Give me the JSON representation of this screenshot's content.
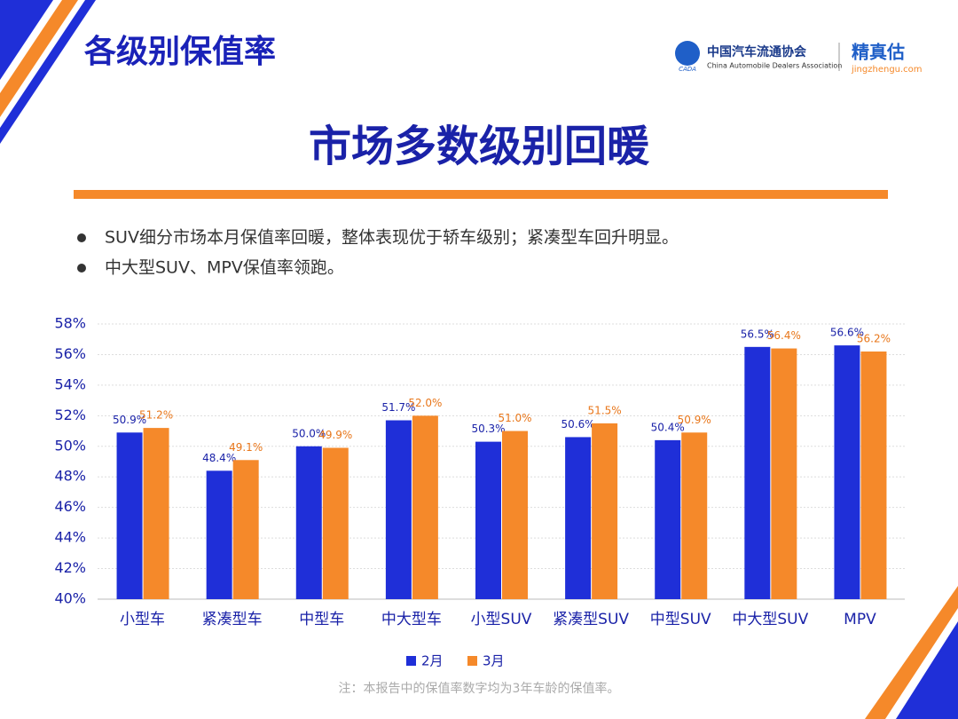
{
  "header": {
    "title": "各级别保值率",
    "logo_cn": "中国汽车流通协会",
    "logo_en": "China Automobile Dealers Association",
    "logo_short": "CADA",
    "brand": "精真估",
    "brand_url": "jingzhengu.com"
  },
  "headline": "市场多数级别回暖",
  "bullets": [
    "SUV细分市场本月保值率回暖，整体表现优于轿车级别；紧凑型车回升明显。",
    "中大型SUV、MPV保值率领跑。"
  ],
  "chart_data": {
    "type": "bar",
    "categories": [
      "小型车",
      "紧凑型车",
      "中型车",
      "中大型车",
      "小型SUV",
      "紧凑型SUV",
      "中型SUV",
      "中大型SUV",
      "MPV"
    ],
    "series": [
      {
        "name": "2月",
        "color": "#1f2fd8",
        "values": [
          50.9,
          48.4,
          50.0,
          51.7,
          50.3,
          50.6,
          50.4,
          56.5,
          56.6
        ],
        "value_labels": [
          "50.9%",
          "48.4%",
          "50.0%",
          "51.7%",
          "50.3%",
          "50.6%",
          "50.4%",
          "56.5%",
          "56.6%"
        ]
      },
      {
        "name": "3月",
        "color": "#f5892a",
        "values": [
          51.2,
          49.1,
          49.9,
          52.0,
          51.0,
          51.5,
          50.9,
          56.4,
          56.2
        ],
        "value_labels": [
          "51.2%",
          "49.1%",
          "49.9%",
          "52.0%",
          "51.0%",
          "51.5%",
          "50.9%",
          "56.4%",
          "56.2%"
        ]
      }
    ],
    "ylim": [
      40,
      58
    ],
    "yticks": [
      {
        "value": 40,
        "label": "40%"
      },
      {
        "value": 42,
        "label": "42%"
      },
      {
        "value": 44,
        "label": "44%"
      },
      {
        "value": 46,
        "label": "46%"
      },
      {
        "value": 48,
        "label": "48%"
      },
      {
        "value": 50,
        "label": "50%"
      },
      {
        "value": 52,
        "label": "52%"
      },
      {
        "value": 54,
        "label": "54%"
      },
      {
        "value": 56,
        "label": "56%"
      },
      {
        "value": 58,
        "label": "58%"
      }
    ],
    "grid": true,
    "legend": "bottom",
    "note": "注：本报告中的保值率数字均为3年车龄的保值率。"
  }
}
